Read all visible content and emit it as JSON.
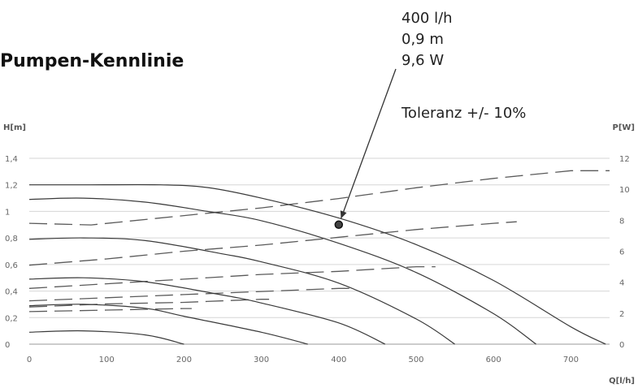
{
  "chart_data": {
    "type": "line",
    "title": "Pumpen-Kennlinie",
    "ylabel_left": "H[m]",
    "ylabel_right": "P[W]",
    "xlabel": "Q[l/h]",
    "xlim": [
      0,
      750
    ],
    "ylim_left": [
      0,
      1.4
    ],
    "ylim_right": [
      0,
      12
    ],
    "x_ticks": [
      "0",
      "100",
      "200",
      "300",
      "400",
      "500",
      "600",
      "700"
    ],
    "y_left_ticks": [
      "0",
      "0,2",
      "0,4",
      "0,6",
      "0,8",
      "1",
      "1,2",
      "1,4"
    ],
    "y_right_ticks": [
      "0",
      "2",
      "4",
      "6",
      "8",
      "10",
      "12"
    ],
    "grid": true,
    "head_series": [
      {
        "axis": "left",
        "points": [
          [
            0,
            1.2
          ],
          [
            80,
            1.2
          ],
          [
            170,
            1.2
          ],
          [
            230,
            1.18
          ],
          [
            300,
            1.1
          ],
          [
            400,
            0.95
          ],
          [
            500,
            0.75
          ],
          [
            600,
            0.48
          ],
          [
            700,
            0.13
          ],
          [
            745,
            0
          ]
        ]
      },
      {
        "axis": "left",
        "points": [
          [
            0,
            1.09
          ],
          [
            70,
            1.1
          ],
          [
            150,
            1.07
          ],
          [
            230,
            1.0
          ],
          [
            300,
            0.93
          ],
          [
            400,
            0.76
          ],
          [
            500,
            0.54
          ],
          [
            600,
            0.23
          ],
          [
            655,
            0
          ]
        ]
      },
      {
        "axis": "left",
        "points": [
          [
            0,
            0.79
          ],
          [
            70,
            0.8
          ],
          [
            150,
            0.78
          ],
          [
            250,
            0.68
          ],
          [
            300,
            0.62
          ],
          [
            400,
            0.46
          ],
          [
            500,
            0.19
          ],
          [
            550,
            0
          ]
        ]
      },
      {
        "axis": "left",
        "points": [
          [
            0,
            0.49
          ],
          [
            70,
            0.5
          ],
          [
            150,
            0.47
          ],
          [
            250,
            0.37
          ],
          [
            300,
            0.31
          ],
          [
            400,
            0.16
          ],
          [
            460,
            0
          ]
        ]
      },
      {
        "axis": "left",
        "points": [
          [
            0,
            0.29
          ],
          [
            70,
            0.3
          ],
          [
            150,
            0.27
          ],
          [
            200,
            0.21
          ],
          [
            300,
            0.09
          ],
          [
            360,
            0
          ]
        ]
      },
      {
        "axis": "left",
        "points": [
          [
            0,
            0.09
          ],
          [
            70,
            0.1
          ],
          [
            150,
            0.07
          ],
          [
            200,
            0
          ]
        ]
      }
    ],
    "power_series": [
      {
        "axis": "right",
        "points": [
          [
            0,
            7.8
          ],
          [
            80,
            7.7
          ],
          [
            200,
            8.3
          ],
          [
            300,
            8.8
          ],
          [
            400,
            9.4
          ],
          [
            500,
            10.1
          ],
          [
            600,
            10.7
          ],
          [
            700,
            11.2
          ],
          [
            750,
            11.2
          ]
        ]
      },
      {
        "axis": "right",
        "points": [
          [
            0,
            5.1
          ],
          [
            100,
            5.5
          ],
          [
            200,
            6.0
          ],
          [
            300,
            6.4
          ],
          [
            400,
            6.9
          ],
          [
            500,
            7.4
          ],
          [
            600,
            7.8
          ],
          [
            630,
            7.9
          ]
        ]
      },
      {
        "axis": "right",
        "points": [
          [
            0,
            3.6
          ],
          [
            100,
            3.9
          ],
          [
            200,
            4.2
          ],
          [
            300,
            4.5
          ],
          [
            400,
            4.7
          ],
          [
            500,
            5.0
          ],
          [
            525,
            5.0
          ]
        ]
      },
      {
        "axis": "right",
        "points": [
          [
            0,
            2.8
          ],
          [
            100,
            3.0
          ],
          [
            200,
            3.2
          ],
          [
            300,
            3.4
          ],
          [
            400,
            3.6
          ],
          [
            420,
            3.6
          ]
        ]
      },
      {
        "axis": "right",
        "points": [
          [
            0,
            2.4
          ],
          [
            100,
            2.6
          ],
          [
            200,
            2.7
          ],
          [
            300,
            2.9
          ],
          [
            310,
            2.9
          ]
        ]
      },
      {
        "axis": "right",
        "points": [
          [
            0,
            2.1
          ],
          [
            100,
            2.2
          ],
          [
            200,
            2.3
          ],
          [
            210,
            2.3
          ]
        ]
      }
    ],
    "operating_point": {
      "x": 400,
      "y": 0.9
    },
    "annotation_lines": [
      "400 l/h",
      "0,9 m",
      "9,6 W",
      "Toleranz +/- 10%"
    ]
  },
  "colors": {
    "head_line": "#3a3a3a",
    "power_line": "#5a5a5a",
    "grid": "#d6d6d6",
    "text": "#222222"
  }
}
